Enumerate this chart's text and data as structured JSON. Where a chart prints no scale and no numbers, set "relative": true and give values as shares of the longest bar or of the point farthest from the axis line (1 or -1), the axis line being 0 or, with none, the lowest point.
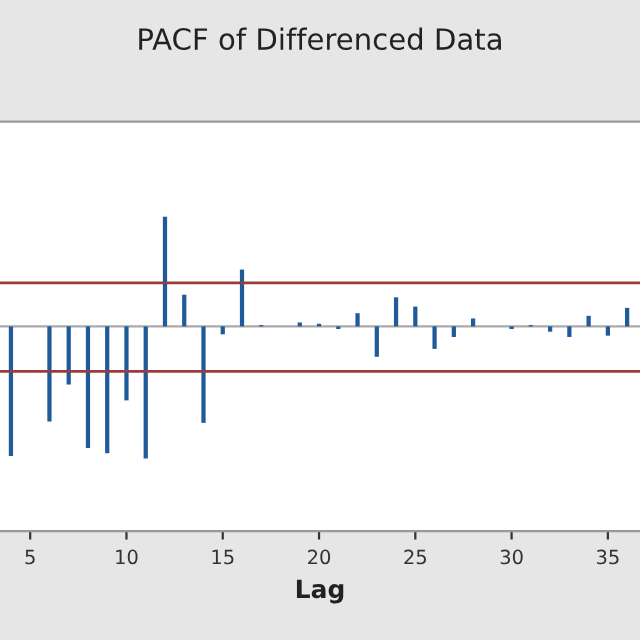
{
  "chart_data": {
    "type": "bar",
    "title": "PACF of Differenced Data",
    "xlabel": "Lag",
    "relative": true,
    "x": [
      4,
      5,
      6,
      7,
      8,
      9,
      10,
      11,
      12,
      13,
      14,
      15,
      16,
      17,
      18,
      19,
      20,
      21,
      22,
      23,
      24,
      25,
      26,
      27,
      28,
      29,
      30,
      31,
      32,
      33,
      34,
      35,
      36
    ],
    "series": [
      {
        "color": "#1f5a99",
        "values": [
          -0.98,
          0,
          -0.72,
          -0.44,
          -0.92,
          -0.96,
          -0.56,
          -1,
          0.83,
          0.24,
          -0.73,
          -0.06,
          0.43,
          0.01,
          0,
          0.03,
          0.02,
          -0.02,
          0.1,
          -0.23,
          0.22,
          0.15,
          -0.17,
          -0.08,
          0.06,
          0,
          -0.02,
          0.01,
          -0.04,
          -0.08,
          0.08,
          -0.07,
          0.14
        ]
      }
    ],
    "xlim": [
      3.1,
      37
    ],
    "xticks": [
      5,
      10,
      15,
      20,
      25,
      30,
      35
    ],
    "ref_lines": [
      {
        "axis": "y",
        "value": 0.33,
        "color": "#9b3b3b"
      },
      {
        "axis": "y",
        "value": -0.34,
        "color": "#9b3b3b"
      }
    ],
    "grid": false,
    "legend": false
  }
}
